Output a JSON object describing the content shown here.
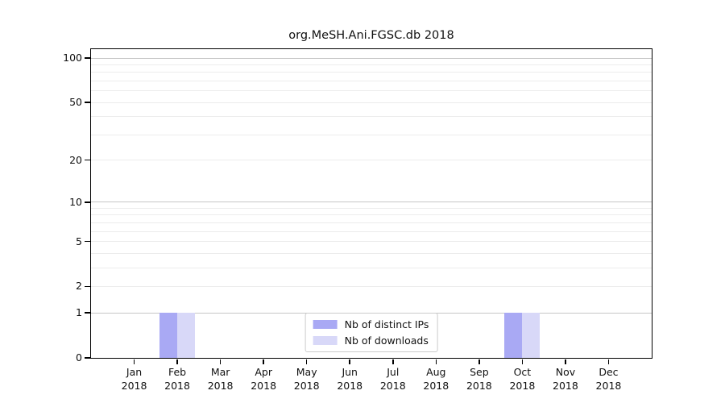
{
  "chart_data": {
    "type": "bar",
    "title": "org.MeSH.Ani.FGSC.db 2018",
    "categories": [
      {
        "month": "Jan",
        "year": "2018"
      },
      {
        "month": "Feb",
        "year": "2018"
      },
      {
        "month": "Mar",
        "year": "2018"
      },
      {
        "month": "Apr",
        "year": "2018"
      },
      {
        "month": "May",
        "year": "2018"
      },
      {
        "month": "Jun",
        "year": "2018"
      },
      {
        "month": "Jul",
        "year": "2018"
      },
      {
        "month": "Aug",
        "year": "2018"
      },
      {
        "month": "Sep",
        "year": "2018"
      },
      {
        "month": "Oct",
        "year": "2018"
      },
      {
        "month": "Nov",
        "year": "2018"
      },
      {
        "month": "Dec",
        "year": "2018"
      }
    ],
    "series": [
      {
        "name": "Nb of distinct IPs",
        "color": "#a9a9f4",
        "values": [
          0,
          1,
          0,
          0,
          0,
          0,
          0,
          0,
          0,
          1,
          0,
          0
        ]
      },
      {
        "name": "Nb of downloads",
        "color": "#d8d8f8",
        "values": [
          0,
          1,
          0,
          0,
          0,
          0,
          0,
          0,
          0,
          1,
          0,
          0
        ]
      }
    ],
    "yscale": "log1p",
    "ylim": [
      0,
      100
    ],
    "yticks": [
      0,
      1,
      2,
      5,
      10,
      20,
      50,
      100
    ],
    "major_gridlines": [
      1,
      10,
      100
    ],
    "grid": true,
    "legend_position": "lower center inside",
    "colors": {
      "major_grid": "#c6c6c6",
      "minor_grid": "#ececec",
      "axis": "#000000",
      "background": "#ffffff"
    }
  }
}
